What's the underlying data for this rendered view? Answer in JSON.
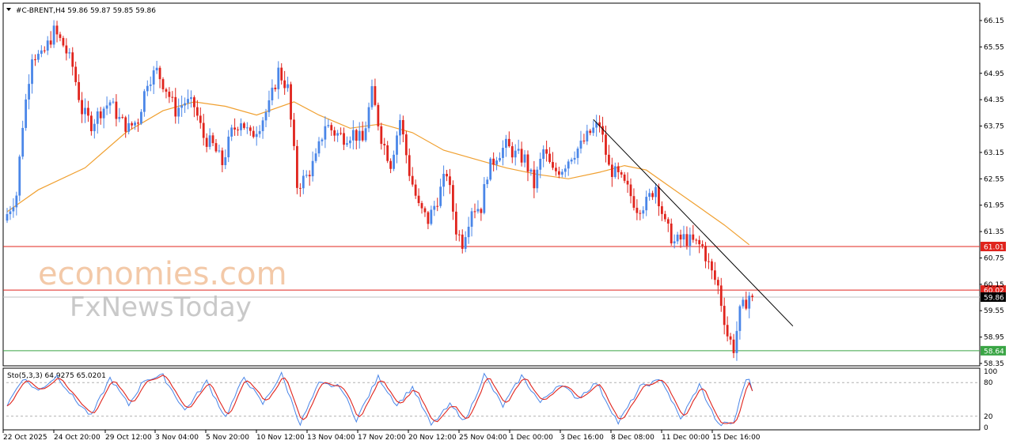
{
  "header": {
    "symbol_line": "#C-BRENT,H4  59.86 59.87 59.85 59.86"
  },
  "watermarks": [
    "economies.com",
    "FxNewsToday"
  ],
  "indicator": {
    "label": "Sto(5,3,3) 64.9275 65.0201",
    "levels": [
      80,
      20
    ],
    "scale_labels": [
      "100",
      "80",
      "20",
      "0"
    ],
    "k_color": "#4a86e8",
    "d_color": "#e0241d"
  },
  "colors": {
    "bull": "#4a86e8",
    "bear": "#e0241d",
    "ma": "#f0a030",
    "resistance_line": "#e0241d",
    "support_line": "#3aa545",
    "trendline": "#000000"
  },
  "chart_data": {
    "type": "candlestick",
    "symbol": "#C-BRENT",
    "timeframe": "H4",
    "ohlc_header": {
      "open": 59.86,
      "high": 59.87,
      "low": 59.85,
      "close": 59.86
    },
    "ylim": [
      58.2,
      66.4
    ],
    "y_ticks": [
      "66.15",
      "65.55",
      "64.95",
      "64.35",
      "63.75",
      "63.15",
      "62.55",
      "61.95",
      "61.35",
      "60.75",
      "60.15",
      "59.55",
      "58.95",
      "58.35"
    ],
    "x_tick_labels": [
      "22 Oct 2025",
      "24 Oct 20:00",
      "29 Oct 12:00",
      "3 Nov 04:00",
      "5 Nov 20:00",
      "10 Nov 12:00",
      "13 Nov 04:00",
      "17 Nov 20:00",
      "20 Nov 12:00",
      "25 Nov 04:00",
      "1 Dec 00:00",
      "3 Dec 16:00",
      "8 Dec 08:00",
      "11 Dec 00:00",
      "15 Dec 16:00"
    ],
    "price_levels": [
      {
        "label": "61.01",
        "value": 61.01,
        "kind": "resistance"
      },
      {
        "label": "60.02",
        "value": 60.02,
        "kind": "resistance"
      },
      {
        "label": "58.64",
        "value": 58.64,
        "kind": "support"
      }
    ],
    "current_price": {
      "label": "59.86",
      "value": 59.86
    },
    "trendline": {
      "start": {
        "bar": 188,
        "price": 63.9
      },
      "end": {
        "bar": 252,
        "price": 59.2
      }
    },
    "candle_count": 240,
    "anchors": [
      [
        0,
        61.6
      ],
      [
        4,
        62.2
      ],
      [
        6,
        63.8
      ],
      [
        9,
        65.4
      ],
      [
        12,
        65.3
      ],
      [
        16,
        65.9
      ],
      [
        19,
        65.6
      ],
      [
        22,
        65.1
      ],
      [
        25,
        64.1
      ],
      [
        28,
        63.8
      ],
      [
        31,
        64.1
      ],
      [
        34,
        64.3
      ],
      [
        37,
        63.9
      ],
      [
        40,
        63.7
      ],
      [
        43,
        63.9
      ],
      [
        46,
        64.8
      ],
      [
        49,
        65.0
      ],
      [
        52,
        64.6
      ],
      [
        55,
        64.1
      ],
      [
        58,
        64.3
      ],
      [
        61,
        64.2
      ],
      [
        64,
        63.5
      ],
      [
        67,
        63.3
      ],
      [
        70,
        62.9
      ],
      [
        73,
        63.6
      ],
      [
        76,
        63.9
      ],
      [
        79,
        63.5
      ],
      [
        82,
        63.8
      ],
      [
        85,
        64.2
      ],
      [
        88,
        65.0
      ],
      [
        91,
        64.6
      ],
      [
        94,
        62.4
      ],
      [
        97,
        62.6
      ],
      [
        100,
        63.0
      ],
      [
        103,
        63.8
      ],
      [
        106,
        63.6
      ],
      [
        109,
        63.5
      ],
      [
        112,
        63.6
      ],
      [
        115,
        63.4
      ],
      [
        118,
        64.5
      ],
      [
        121,
        63.5
      ],
      [
        124,
        62.9
      ],
      [
        127,
        63.9
      ],
      [
        130,
        62.7
      ],
      [
        133,
        61.9
      ],
      [
        136,
        61.6
      ],
      [
        139,
        62.1
      ],
      [
        142,
        62.7
      ],
      [
        145,
        61.4
      ],
      [
        147,
        61.1
      ],
      [
        150,
        61.9
      ],
      [
        153,
        61.9
      ],
      [
        155,
        62.7
      ],
      [
        158,
        63.1
      ],
      [
        161,
        63.3
      ],
      [
        164,
        63.1
      ],
      [
        167,
        63.0
      ],
      [
        170,
        62.4
      ],
      [
        173,
        63.2
      ],
      [
        176,
        62.7
      ],
      [
        179,
        62.8
      ],
      [
        182,
        63.1
      ],
      [
        185,
        63.3
      ],
      [
        188,
        63.6
      ],
      [
        191,
        63.8
      ],
      [
        194,
        62.8
      ],
      [
        197,
        62.6
      ],
      [
        200,
        62.3
      ],
      [
        203,
        61.9
      ],
      [
        206,
        62.0
      ],
      [
        209,
        62.4
      ],
      [
        212,
        61.5
      ],
      [
        215,
        61.1
      ],
      [
        218,
        61.2
      ],
      [
        221,
        61.1
      ],
      [
        224,
        61.0
      ],
      [
        227,
        60.4
      ],
      [
        229,
        60.1
      ],
      [
        232,
        59.0
      ],
      [
        234,
        58.7
      ],
      [
        236,
        59.5
      ],
      [
        239,
        59.9
      ],
      [
        240,
        60.3
      ]
    ],
    "moving_average": [
      [
        0,
        61.8
      ],
      [
        10,
        62.3
      ],
      [
        25,
        62.8
      ],
      [
        38,
        63.6
      ],
      [
        50,
        64.1
      ],
      [
        60,
        64.3
      ],
      [
        70,
        64.2
      ],
      [
        80,
        64.0
      ],
      [
        92,
        64.3
      ],
      [
        100,
        64.0
      ],
      [
        110,
        63.7
      ],
      [
        120,
        63.8
      ],
      [
        130,
        63.6
      ],
      [
        140,
        63.2
      ],
      [
        150,
        63.0
      ],
      [
        160,
        62.8
      ],
      [
        170,
        62.65
      ],
      [
        180,
        62.55
      ],
      [
        190,
        62.7
      ],
      [
        198,
        62.85
      ],
      [
        205,
        62.75
      ],
      [
        212,
        62.4
      ],
      [
        220,
        62.0
      ],
      [
        230,
        61.5
      ],
      [
        238,
        61.05
      ]
    ],
    "stochastic": {
      "name": "Sto(5,3,3)",
      "k_last": 64.9275,
      "d_last": 65.0201,
      "ylim": [
        0,
        100
      ],
      "k_anchors": [
        [
          0,
          40
        ],
        [
          5,
          88
        ],
        [
          10,
          65
        ],
        [
          16,
          92
        ],
        [
          22,
          48
        ],
        [
          27,
          20
        ],
        [
          33,
          88
        ],
        [
          39,
          40
        ],
        [
          44,
          85
        ],
        [
          50,
          92
        ],
        [
          57,
          30
        ],
        [
          64,
          82
        ],
        [
          70,
          18
        ],
        [
          76,
          90
        ],
        [
          82,
          42
        ],
        [
          88,
          95
        ],
        [
          94,
          6
        ],
        [
          100,
          78
        ],
        [
          107,
          72
        ],
        [
          112,
          14
        ],
        [
          119,
          90
        ],
        [
          125,
          40
        ],
        [
          130,
          72
        ],
        [
          136,
          4
        ],
        [
          142,
          40
        ],
        [
          147,
          12
        ],
        [
          153,
          94
        ],
        [
          159,
          38
        ],
        [
          165,
          92
        ],
        [
          171,
          44
        ],
        [
          177,
          78
        ],
        [
          183,
          52
        ],
        [
          189,
          80
        ],
        [
          196,
          8
        ],
        [
          203,
          72
        ],
        [
          210,
          85
        ],
        [
          216,
          14
        ],
        [
          222,
          76
        ],
        [
          228,
          5
        ],
        [
          233,
          8
        ],
        [
          237,
          88
        ],
        [
          240,
          72
        ]
      ]
    }
  }
}
